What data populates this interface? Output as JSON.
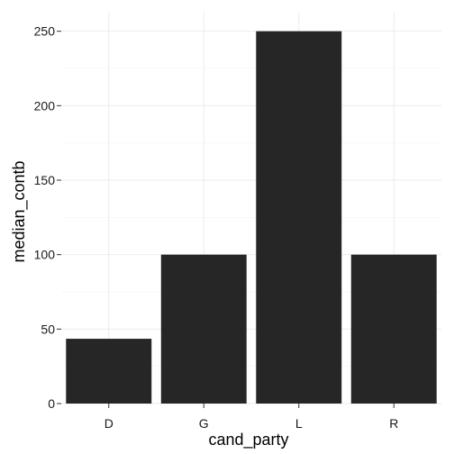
{
  "chart_data": {
    "type": "bar",
    "categories": [
      "D",
      "G",
      "L",
      "R"
    ],
    "values": [
      43.5,
      100,
      250,
      100
    ],
    "xlabel": "cand_party",
    "ylabel": "median_contb",
    "ylim": [
      0,
      262.5
    ],
    "yticks": [
      0,
      50,
      100,
      150,
      200,
      250
    ],
    "yticklabels": [
      "0",
      "50",
      "100",
      "150",
      "200",
      "250"
    ],
    "grid": true,
    "legend": "none",
    "bar_color": "#262626",
    "grid_color": "#ebebeb"
  }
}
